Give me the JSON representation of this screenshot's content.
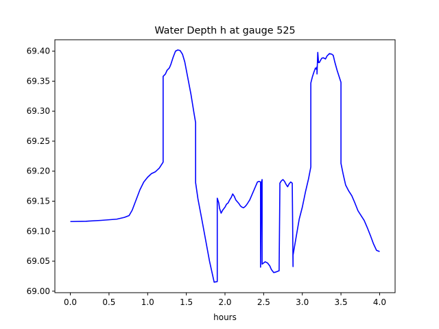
{
  "chart_data": {
    "type": "line",
    "title": "Water Depth h at gauge 525",
    "xlabel": "hours",
    "ylabel": "",
    "xlim": [
      -0.2,
      4.2
    ],
    "ylim": [
      68.9975,
      69.419
    ],
    "x_ticks": [
      0.0,
      0.5,
      1.0,
      1.5,
      2.0,
      2.5,
      3.0,
      3.5,
      4.0
    ],
    "x_tick_labels": [
      "0.0",
      "0.5",
      "1.0",
      "1.5",
      "2.0",
      "2.5",
      "3.0",
      "3.5",
      "4.0"
    ],
    "y_ticks": [
      69.0,
      69.05,
      69.1,
      69.15,
      69.2,
      69.25,
      69.3,
      69.35,
      69.4
    ],
    "y_tick_labels": [
      "69.00",
      "69.05",
      "69.10",
      "69.15",
      "69.20",
      "69.25",
      "69.30",
      "69.35",
      "69.40"
    ],
    "grid": false,
    "legend": "none",
    "series": [
      {
        "color": "#0000ff",
        "x": [
          0.0,
          0.2,
          0.4,
          0.6,
          0.7,
          0.76,
          0.8,
          0.85,
          0.9,
          0.95,
          1.0,
          1.05,
          1.1,
          1.15,
          1.2,
          1.2,
          1.23,
          1.25,
          1.28,
          1.3,
          1.33,
          1.36,
          1.39,
          1.42,
          1.45,
          1.48,
          1.52,
          1.56,
          1.6,
          1.62,
          1.62,
          1.65,
          1.7,
          1.75,
          1.8,
          1.86,
          1.9,
          1.9,
          1.92,
          1.93,
          1.95,
          1.97,
          2.0,
          2.02,
          2.04,
          2.06,
          2.08,
          2.1,
          2.12,
          2.14,
          2.16,
          2.18,
          2.2,
          2.22,
          2.24,
          2.26,
          2.28,
          2.3,
          2.32,
          2.34,
          2.36,
          2.38,
          2.4,
          2.42,
          2.44,
          2.46,
          2.46,
          2.47,
          2.48,
          2.48,
          2.5,
          2.52,
          2.55,
          2.58,
          2.6,
          2.63,
          2.66,
          2.7,
          2.71,
          2.71,
          2.73,
          2.75,
          2.77,
          2.79,
          2.81,
          2.83,
          2.85,
          2.87,
          2.88,
          2.88,
          2.92,
          2.96,
          3.0,
          3.04,
          3.08,
          3.11,
          3.11,
          3.13,
          3.15,
          3.17,
          3.18,
          3.19,
          3.19,
          3.2,
          3.21,
          3.22,
          3.25,
          3.27,
          3.3,
          3.32,
          3.35,
          3.38,
          3.4,
          3.42,
          3.45,
          3.48,
          3.5,
          3.5,
          3.53,
          3.56,
          3.6,
          3.64,
          3.68,
          3.72,
          3.76,
          3.8,
          3.84,
          3.88,
          3.92,
          3.96,
          4.0
        ],
        "y": [
          69.116,
          69.1165,
          69.118,
          69.12,
          69.123,
          69.126,
          69.135,
          69.152,
          69.169,
          69.182,
          69.19,
          69.196,
          69.199,
          69.205,
          69.215,
          69.358,
          69.362,
          69.368,
          69.372,
          69.378,
          69.39,
          69.4,
          69.402,
          69.401,
          69.395,
          69.382,
          69.355,
          69.328,
          69.296,
          69.281,
          69.181,
          69.154,
          69.12,
          69.085,
          69.05,
          69.015,
          69.016,
          69.155,
          69.147,
          69.138,
          69.13,
          69.135,
          69.14,
          69.145,
          69.147,
          69.152,
          69.156,
          69.162,
          69.158,
          69.152,
          69.149,
          69.146,
          69.142,
          69.14,
          69.139,
          69.141,
          69.144,
          69.148,
          69.152,
          69.158,
          69.164,
          69.17,
          69.176,
          69.182,
          69.183,
          69.182,
          69.04,
          69.18,
          69.186,
          69.045,
          69.047,
          69.049,
          69.047,
          69.042,
          69.036,
          69.031,
          69.032,
          69.034,
          69.176,
          69.18,
          69.184,
          69.186,
          69.183,
          69.178,
          69.174,
          69.179,
          69.182,
          69.18,
          69.041,
          69.06,
          69.09,
          69.12,
          69.14,
          69.165,
          69.187,
          69.207,
          69.347,
          69.357,
          69.365,
          69.372,
          69.37,
          69.374,
          69.362,
          69.398,
          69.381,
          69.381,
          69.388,
          69.389,
          69.387,
          69.392,
          69.396,
          69.395,
          69.393,
          69.382,
          69.368,
          69.356,
          69.348,
          69.213,
          69.194,
          69.177,
          69.167,
          69.159,
          69.147,
          69.134,
          69.126,
          69.118,
          69.106,
          69.093,
          69.079,
          69.068,
          69.066
        ]
      }
    ]
  }
}
